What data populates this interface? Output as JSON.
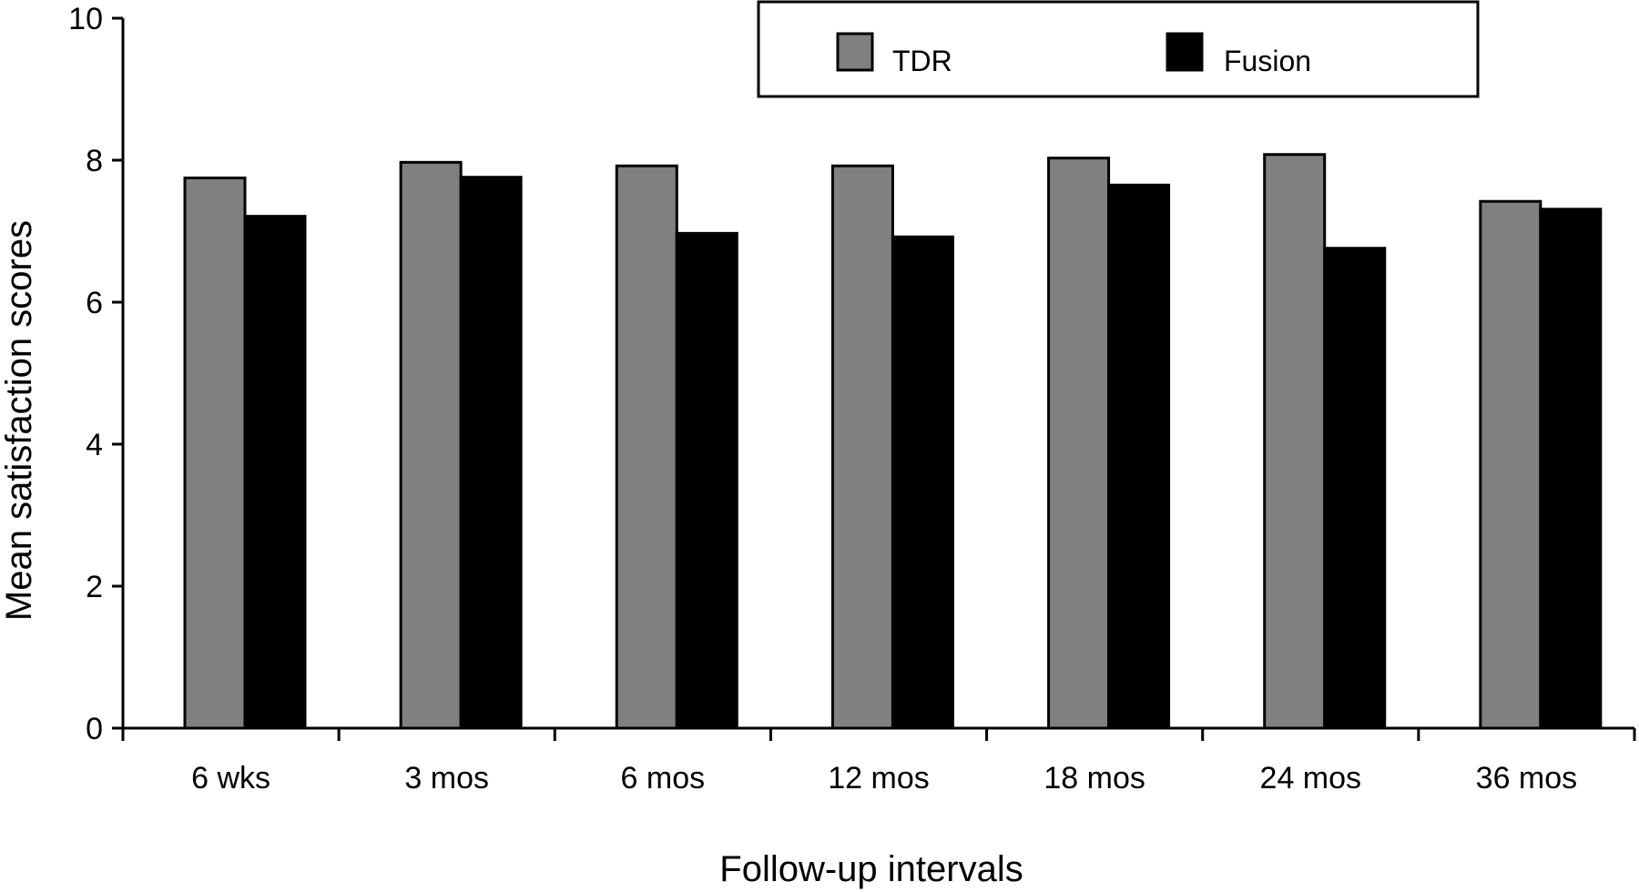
{
  "chart_data": {
    "type": "bar",
    "title": "",
    "xlabel": "Follow-up intervals",
    "ylabel": "Mean satisfaction scores",
    "ylim": [
      0,
      10
    ],
    "yticks": [
      "0",
      "2",
      "4",
      "6",
      "8",
      "10"
    ],
    "categories": [
      "6 wks",
      "3 mos",
      "6 mos",
      "12 mos",
      "18 mos",
      "24 mos",
      "36 mos"
    ],
    "series": [
      {
        "name": "TDR",
        "color": "#808080",
        "values": [
          7.75,
          7.97,
          7.92,
          7.92,
          8.03,
          8.08,
          7.42
        ]
      },
      {
        "name": "Fusion",
        "color": "#000000",
        "values": [
          7.21,
          7.76,
          6.97,
          6.92,
          7.65,
          6.76,
          7.31
        ]
      }
    ],
    "legend": {
      "position": "top-right",
      "border": true
    },
    "grid": false
  }
}
